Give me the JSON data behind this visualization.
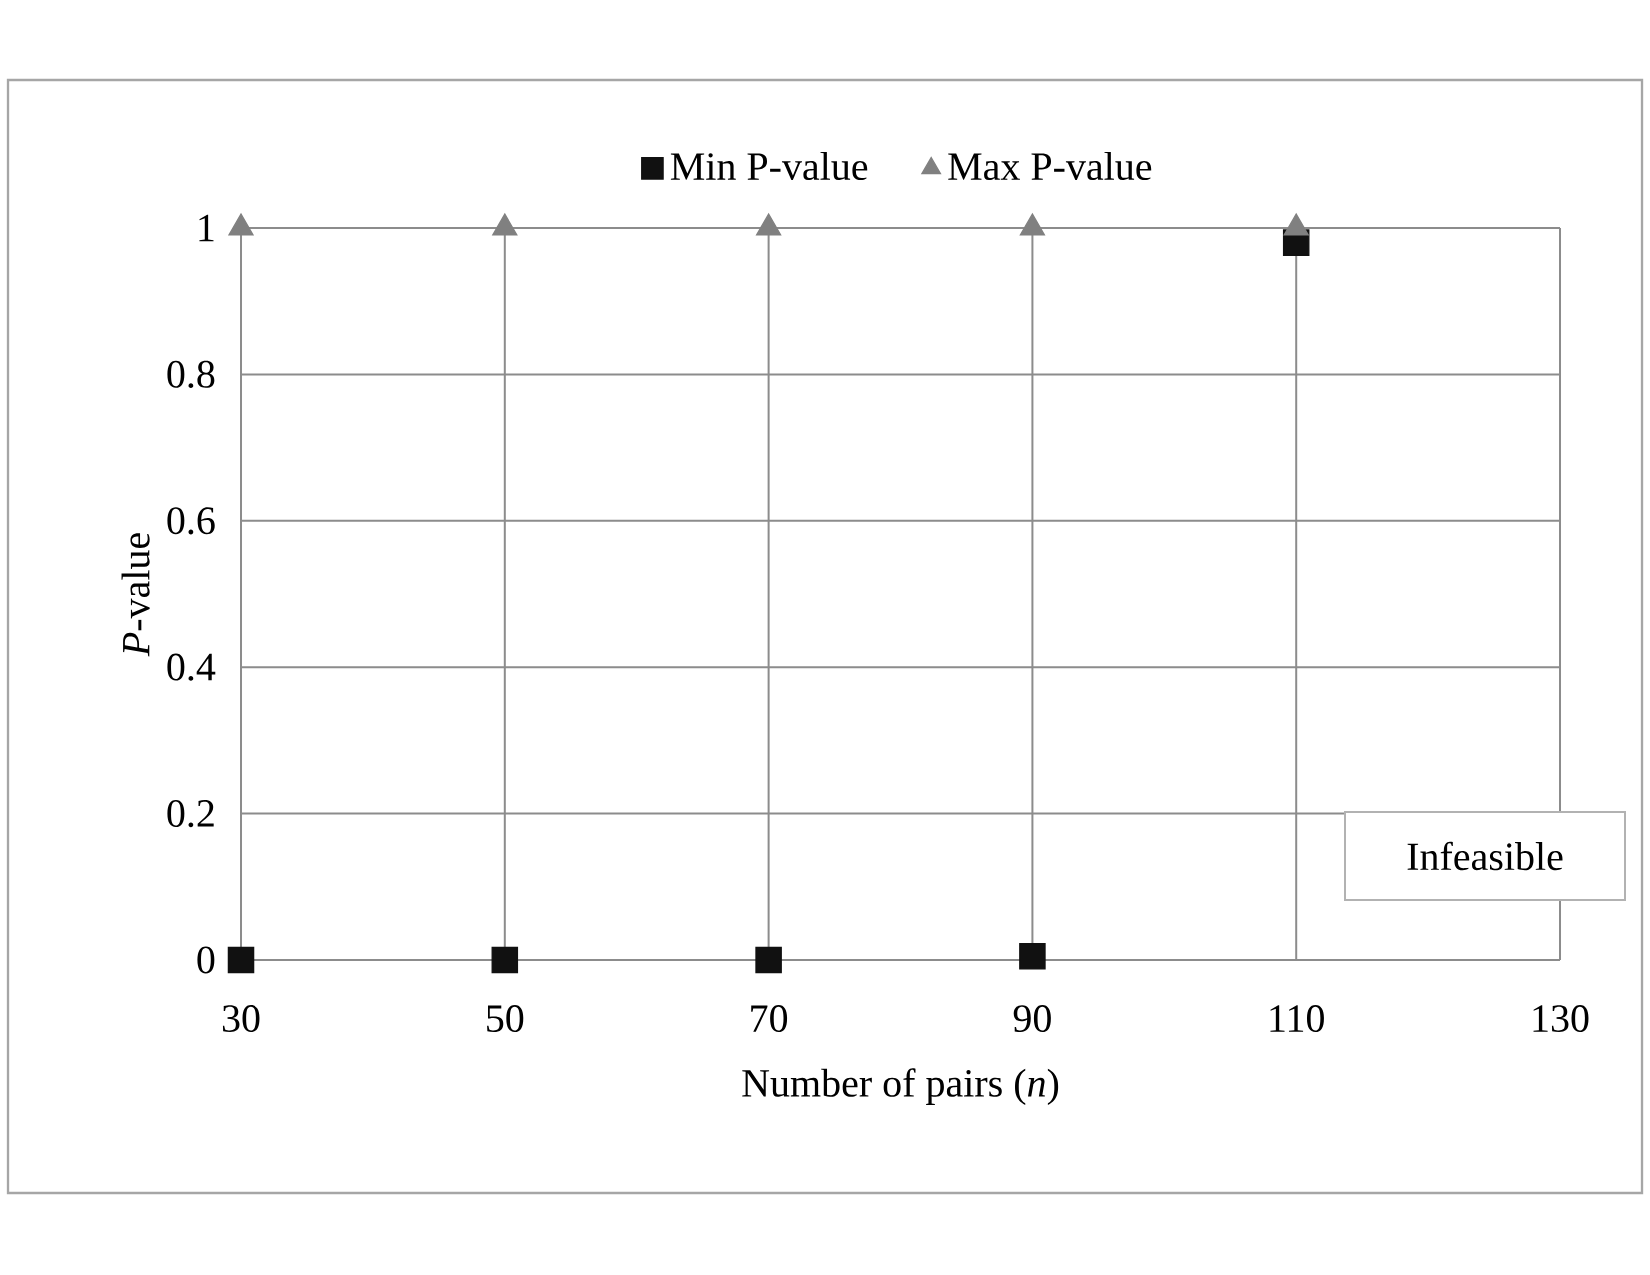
{
  "chart_data": {
    "type": "scatter",
    "xlabel": "Number of pairs (*n*)",
    "ylabel": "*P*-value",
    "x": [
      30,
      50,
      70,
      90,
      110
    ],
    "series": [
      {
        "name": "Min P-value",
        "color": "#111111",
        "marker": "square",
        "values": [
          0,
          0,
          0,
          0.005,
          0.98
        ]
      },
      {
        "name": "Max P-value",
        "color": "#808080",
        "marker": "triangle",
        "values": [
          1,
          1,
          1,
          1,
          1
        ]
      }
    ],
    "xlim": [
      30,
      130
    ],
    "xticks": [
      30,
      50,
      70,
      90,
      110,
      130
    ],
    "ylim": [
      0,
      1
    ],
    "yticks": [
      0,
      0.2,
      0.4,
      0.6,
      0.8,
      1
    ],
    "grid": true,
    "legend": "top",
    "annotations": [
      "Infeasible"
    ]
  }
}
